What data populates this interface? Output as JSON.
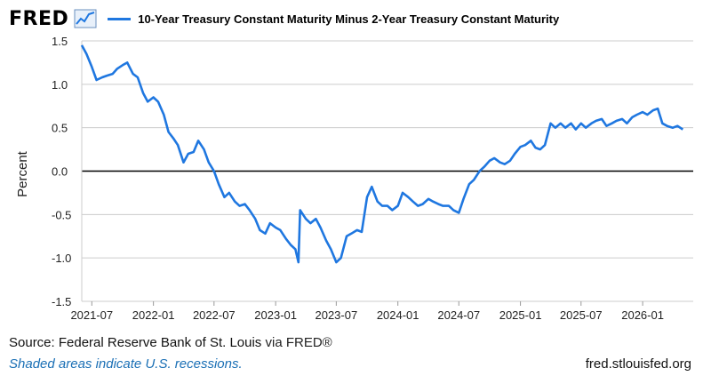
{
  "header": {
    "logo_text": "FRED",
    "logo_icon": "trend-chart-icon"
  },
  "colors": {
    "series": "#1f77e0",
    "zero_line": "#000000",
    "grid": "#cccccc",
    "note": "#1a6fb5"
  },
  "chart_data": {
    "type": "line",
    "title": "",
    "ylabel": "Percent",
    "xlabel": "",
    "ylim": [
      -1.5,
      1.5
    ],
    "y_ticks": [
      1.5,
      1.0,
      0.5,
      0.0,
      -0.5,
      -1.0,
      -1.5
    ],
    "y_tick_labels": [
      "1.5",
      "1.0",
      "0.5",
      "0.0",
      "-0.5",
      "-1.0",
      "-1.5"
    ],
    "x_range": [
      "2021-06-01",
      "2026-06-01"
    ],
    "x_ticks": [
      "2021-07-01",
      "2022-01-01",
      "2022-07-01",
      "2023-01-01",
      "2023-07-01",
      "2024-01-01",
      "2024-07-01",
      "2025-01-01",
      "2025-07-01",
      "2026-01-01"
    ],
    "x_tick_labels": [
      "2021-07",
      "2022-01",
      "2022-07",
      "2023-01",
      "2023-07",
      "2024-01",
      "2024-07",
      "2025-01",
      "2025-07",
      "2026-01"
    ],
    "grid": true,
    "zero_line": true,
    "series": [
      {
        "name": "10-Year Treasury Constant Maturity Minus 2-Year Treasury Constant Maturity",
        "x": [
          "2021-06-01",
          "2021-06-15",
          "2021-07-01",
          "2021-07-15",
          "2021-08-01",
          "2021-08-15",
          "2021-09-01",
          "2021-09-15",
          "2021-10-01",
          "2021-10-15",
          "2021-11-01",
          "2021-11-15",
          "2021-12-01",
          "2021-12-15",
          "2022-01-01",
          "2022-01-15",
          "2022-02-01",
          "2022-02-15",
          "2022-03-01",
          "2022-03-15",
          "2022-04-01",
          "2022-04-15",
          "2022-05-01",
          "2022-05-15",
          "2022-06-01",
          "2022-06-15",
          "2022-07-01",
          "2022-07-15",
          "2022-08-01",
          "2022-08-15",
          "2022-09-01",
          "2022-09-15",
          "2022-10-01",
          "2022-10-15",
          "2022-11-01",
          "2022-11-15",
          "2022-12-01",
          "2022-12-15",
          "2023-01-01",
          "2023-01-15",
          "2023-02-01",
          "2023-02-15",
          "2023-03-01",
          "2023-03-10",
          "2023-03-15",
          "2023-04-01",
          "2023-04-15",
          "2023-05-01",
          "2023-05-15",
          "2023-06-01",
          "2023-06-15",
          "2023-07-01",
          "2023-07-15",
          "2023-08-01",
          "2023-08-15",
          "2023-09-01",
          "2023-09-15",
          "2023-10-01",
          "2023-10-15",
          "2023-11-01",
          "2023-11-15",
          "2023-12-01",
          "2023-12-15",
          "2024-01-01",
          "2024-01-15",
          "2024-02-01",
          "2024-02-15",
          "2024-03-01",
          "2024-03-15",
          "2024-04-01",
          "2024-04-15",
          "2024-05-01",
          "2024-05-15",
          "2024-06-01",
          "2024-06-15",
          "2024-07-01",
          "2024-07-15",
          "2024-08-01",
          "2024-08-15",
          "2024-09-01",
          "2024-09-15",
          "2024-10-01",
          "2024-10-15",
          "2024-11-01",
          "2024-11-15",
          "2024-12-01",
          "2024-12-15",
          "2025-01-01",
          "2025-01-15",
          "2025-02-01",
          "2025-02-15",
          "2025-03-01",
          "2025-03-15",
          "2025-04-01",
          "2025-04-15",
          "2025-05-01",
          "2025-05-15",
          "2025-06-01",
          "2025-06-15",
          "2025-07-01",
          "2025-07-15",
          "2025-08-01",
          "2025-08-15",
          "2025-09-01",
          "2025-09-15",
          "2025-10-01",
          "2025-10-15",
          "2025-11-01",
          "2025-11-15",
          "2025-12-01",
          "2025-12-15",
          "2026-01-01",
          "2026-01-15",
          "2026-02-01",
          "2026-02-15",
          "2026-03-01",
          "2026-03-15",
          "2026-04-01",
          "2026-04-15",
          "2026-05-01"
        ],
        "y": [
          1.45,
          1.35,
          1.2,
          1.05,
          1.08,
          1.1,
          1.12,
          1.18,
          1.22,
          1.25,
          1.12,
          1.08,
          0.9,
          0.8,
          0.85,
          0.8,
          0.65,
          0.45,
          0.38,
          0.3,
          0.1,
          0.2,
          0.22,
          0.35,
          0.25,
          0.1,
          0.0,
          -0.15,
          -0.3,
          -0.25,
          -0.35,
          -0.4,
          -0.38,
          -0.45,
          -0.55,
          -0.68,
          -0.72,
          -0.6,
          -0.65,
          -0.68,
          -0.78,
          -0.85,
          -0.9,
          -1.05,
          -0.45,
          -0.55,
          -0.6,
          -0.55,
          -0.65,
          -0.8,
          -0.9,
          -1.05,
          -1.0,
          -0.75,
          -0.72,
          -0.68,
          -0.7,
          -0.3,
          -0.18,
          -0.35,
          -0.4,
          -0.4,
          -0.45,
          -0.4,
          -0.25,
          -0.3,
          -0.35,
          -0.4,
          -0.38,
          -0.32,
          -0.35,
          -0.38,
          -0.4,
          -0.4,
          -0.45,
          -0.48,
          -0.32,
          -0.15,
          -0.1,
          0.0,
          0.05,
          0.12,
          0.15,
          0.1,
          0.08,
          0.12,
          0.2,
          0.28,
          0.3,
          0.35,
          0.27,
          0.25,
          0.3,
          0.55,
          0.5,
          0.55,
          0.5,
          0.55,
          0.48,
          0.55,
          0.5,
          0.55,
          0.58,
          0.6,
          0.52,
          0.55,
          0.58,
          0.6,
          0.55,
          0.62,
          0.65,
          0.68,
          0.65,
          0.7,
          0.72,
          0.55,
          0.52,
          0.5,
          0.52,
          0.48
        ]
      }
    ]
  },
  "footer": {
    "source_prefix": "Source: Federal Reserve Bank of St. Louis",
    "source_link": "via FRED®",
    "note": "Shaded areas indicate U.S. recessions.",
    "site": "fred.stlouisfed.org"
  }
}
